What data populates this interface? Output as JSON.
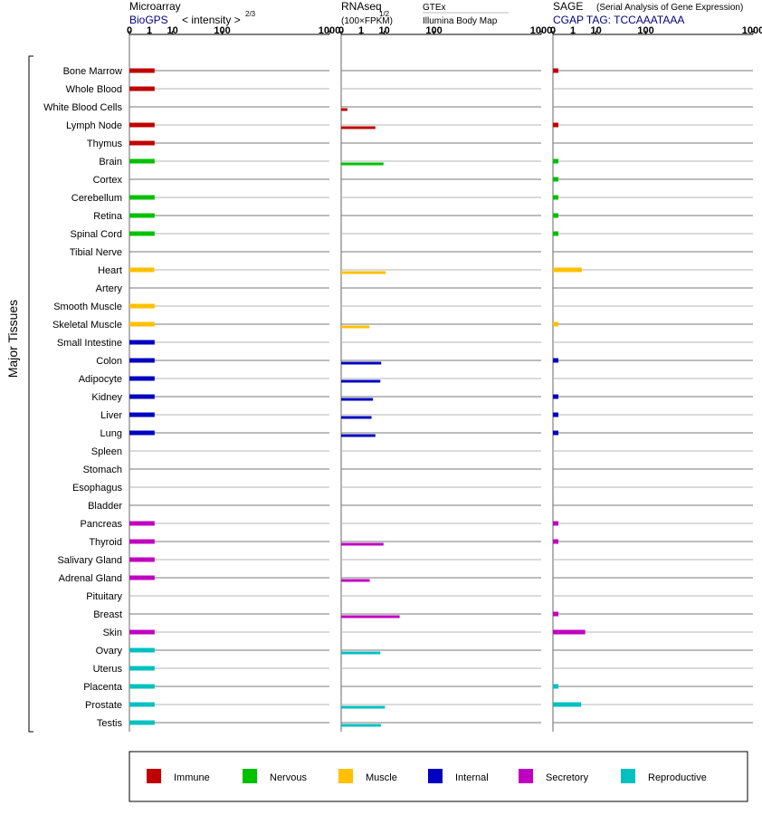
{
  "header": {
    "micro_title": "Microarray",
    "micro_sub_link": "BioGPS",
    "micro_sub_text": "< intensity >",
    "micro_sub_exp": "2/3",
    "rna_title": "RNAseq",
    "rna_exp": "1/2",
    "rna_sub": "(100×FPKM)",
    "rna_src1": "GTEx",
    "rna_src2": "Illumina Body Map",
    "sage_title": "SAGE",
    "sage_desc": "(Serial Analysis of Gene Expression)",
    "sage_tag": "CGAP TAG: TCCAAATAAA"
  },
  "group_label": "Major Tissues",
  "legend": [
    {
      "label": "Immune",
      "color": "#c00000"
    },
    {
      "label": "Nervous",
      "color": "#00c000"
    },
    {
      "label": "Muscle",
      "color": "#ffc000"
    },
    {
      "label": "Internal",
      "color": "#0000c0"
    },
    {
      "label": "Secretory",
      "color": "#c000c0"
    },
    {
      "label": "Reproductive",
      "color": "#00c0c0"
    }
  ],
  "chart_data": {
    "type": "bar",
    "orientation": "horizontal",
    "x_scale": "power",
    "axes": [
      {
        "panel": "Microarray",
        "ticks": [
          "0",
          "1",
          "10",
          "100",
          "1000"
        ],
        "xlim": [
          0,
          1000
        ]
      },
      {
        "panel": "RNAseq",
        "ticks": [
          "0",
          "1",
          "10",
          "100",
          "1000"
        ],
        "xlim": [
          0,
          1000
        ]
      },
      {
        "panel": "SAGE",
        "ticks": [
          "0",
          "1",
          "10",
          "100",
          "1000"
        ],
        "xlim": [
          0,
          1000
        ]
      }
    ],
    "categories": [
      "Bone Marrow",
      "Whole Blood",
      "White Blood Cells",
      "Lymph Node",
      "Thymus",
      "Brain",
      "Cortex",
      "Cerebellum",
      "Retina",
      "Spinal Cord",
      "Tibial Nerve",
      "Heart",
      "Artery",
      "Smooth Muscle",
      "Skeletal Muscle",
      "Small Intestine",
      "Colon",
      "Adipocyte",
      "Kidney",
      "Liver",
      "Lung",
      "Spleen",
      "Stomach",
      "Esophagus",
      "Bladder",
      "Pancreas",
      "Thyroid",
      "Salivary Gland",
      "Adrenal Gland",
      "Pituitary",
      "Breast",
      "Skin",
      "Ovary",
      "Uterus",
      "Placenta",
      "Prostate",
      "Testis"
    ],
    "system": [
      "Immune",
      "Immune",
      "Immune",
      "Immune",
      "Immune",
      "Nervous",
      "Nervous",
      "Nervous",
      "Nervous",
      "Nervous",
      "Nervous",
      "Muscle",
      "Muscle",
      "Muscle",
      "Muscle",
      "Internal",
      "Internal",
      "Internal",
      "Internal",
      "Internal",
      "Internal",
      "Internal",
      "Internal",
      "Internal",
      "Internal",
      "Secretory",
      "Secretory",
      "Secretory",
      "Secretory",
      "Secretory",
      "Secretory",
      "Secretory",
      "Reproductive",
      "Reproductive",
      "Reproductive",
      "Reproductive",
      "Reproductive"
    ],
    "series": [
      {
        "name": "Microarray",
        "values": [
          2,
          2,
          null,
          2,
          2,
          2,
          null,
          2,
          2,
          2,
          null,
          1.9,
          null,
          2,
          2,
          2,
          2,
          2,
          2,
          2,
          2,
          null,
          null,
          null,
          null,
          2,
          2,
          2,
          2,
          null,
          null,
          2,
          2,
          2,
          2,
          2,
          2
        ]
      },
      {
        "name": "RNAseq GTEx",
        "values": [
          null,
          null,
          null,
          null,
          null,
          null,
          null,
          null,
          null,
          null,
          null,
          null,
          null,
          null,
          null,
          null,
          null,
          null,
          null,
          null,
          null,
          null,
          null,
          null,
          null,
          null,
          null,
          null,
          null,
          null,
          null,
          null,
          null,
          null,
          null,
          null,
          null
        ]
      },
      {
        "name": "RNAseq Illumina Body Map",
        "values": [
          null,
          null,
          0.03,
          5,
          null,
          9.5,
          null,
          null,
          null,
          null,
          null,
          11,
          null,
          null,
          2.8,
          null,
          8,
          7.5,
          4,
          3.5,
          5,
          null,
          null,
          null,
          null,
          null,
          9.5,
          null,
          2.9,
          null,
          25,
          null,
          7.5,
          null,
          null,
          10.5,
          7.8
        ]
      },
      {
        "name": "SAGE",
        "values": [
          0.02,
          null,
          null,
          0.02,
          null,
          0.02,
          0.02,
          0.02,
          0.02,
          0.02,
          null,
          3,
          null,
          null,
          0.02,
          null,
          0.02,
          null,
          0.02,
          0.02,
          0.02,
          null,
          null,
          null,
          null,
          0.02,
          0.02,
          null,
          null,
          null,
          0.02,
          4.2,
          null,
          null,
          0.02,
          2.8,
          null
        ]
      }
    ]
  }
}
